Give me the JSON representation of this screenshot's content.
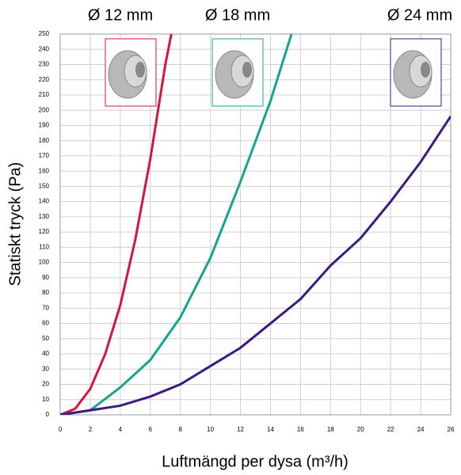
{
  "chart_data": {
    "type": "line",
    "xlabel": "Luftmängd per dysa (m³/h)",
    "ylabel": "Statiskt tryck (Pa)",
    "xlim": [
      0,
      26
    ],
    "xticks": [
      0,
      2,
      4,
      6,
      8,
      10,
      12,
      14,
      16,
      18,
      20,
      22,
      24,
      26
    ],
    "ylim": [
      0,
      250
    ],
    "yticks": [
      0,
      10,
      20,
      30,
      40,
      50,
      60,
      70,
      80,
      90,
      100,
      110,
      120,
      130,
      140,
      150,
      160,
      170,
      180,
      190,
      200,
      210,
      220,
      230,
      240,
      250
    ],
    "grid": true,
    "series": [
      {
        "name": "Ø 12 mm",
        "color": "#d4163c",
        "x": [
          0,
          1,
          2,
          3,
          4,
          5,
          6,
          7,
          7.4
        ],
        "values": [
          0,
          4,
          17,
          40,
          72,
          115,
          168,
          230,
          250
        ]
      },
      {
        "name": "Ø 18 mm",
        "color": "#14a58c",
        "x": [
          0,
          2,
          4,
          6,
          8,
          10,
          12,
          14,
          15.4
        ],
        "values": [
          0,
          3,
          18,
          36,
          64,
          103,
          153,
          206,
          250
        ]
      },
      {
        "name": "Ø 24 mm",
        "color": "#3c1a82",
        "x": [
          0,
          2,
          4,
          6,
          8,
          10,
          12,
          14,
          16,
          18,
          20,
          22,
          24,
          26
        ],
        "values": [
          0,
          3,
          6,
          12,
          20,
          32,
          44,
          60,
          76,
          98,
          116,
          140,
          166,
          196
        ]
      }
    ]
  }
}
